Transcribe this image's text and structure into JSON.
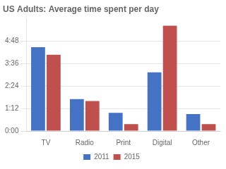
{
  "chart_data": {
    "type": "bar",
    "title": "US Adults: Average time spent per day",
    "categories": [
      "TV",
      "Radio",
      "Print",
      "Digital",
      "Other"
    ],
    "series": [
      {
        "name": "2011",
        "color": "#4472C4",
        "values": [
          4.47,
          1.7,
          0.97,
          3.13,
          0.9
        ]
      },
      {
        "name": "2015",
        "color": "#C0504D",
        "values": [
          4.07,
          1.6,
          0.37,
          5.62,
          0.37
        ]
      }
    ],
    "ylim": [
      0,
      6.0
    ],
    "yticks": [
      {
        "value": 0,
        "label": "0:00"
      },
      {
        "value": 1.2,
        "label": "1:12"
      },
      {
        "value": 2.4,
        "label": "2:24"
      },
      {
        "value": 3.6,
        "label": "3:36"
      },
      {
        "value": 4.8,
        "label": "4:48"
      }
    ],
    "grid": true,
    "legend": "bottom"
  }
}
